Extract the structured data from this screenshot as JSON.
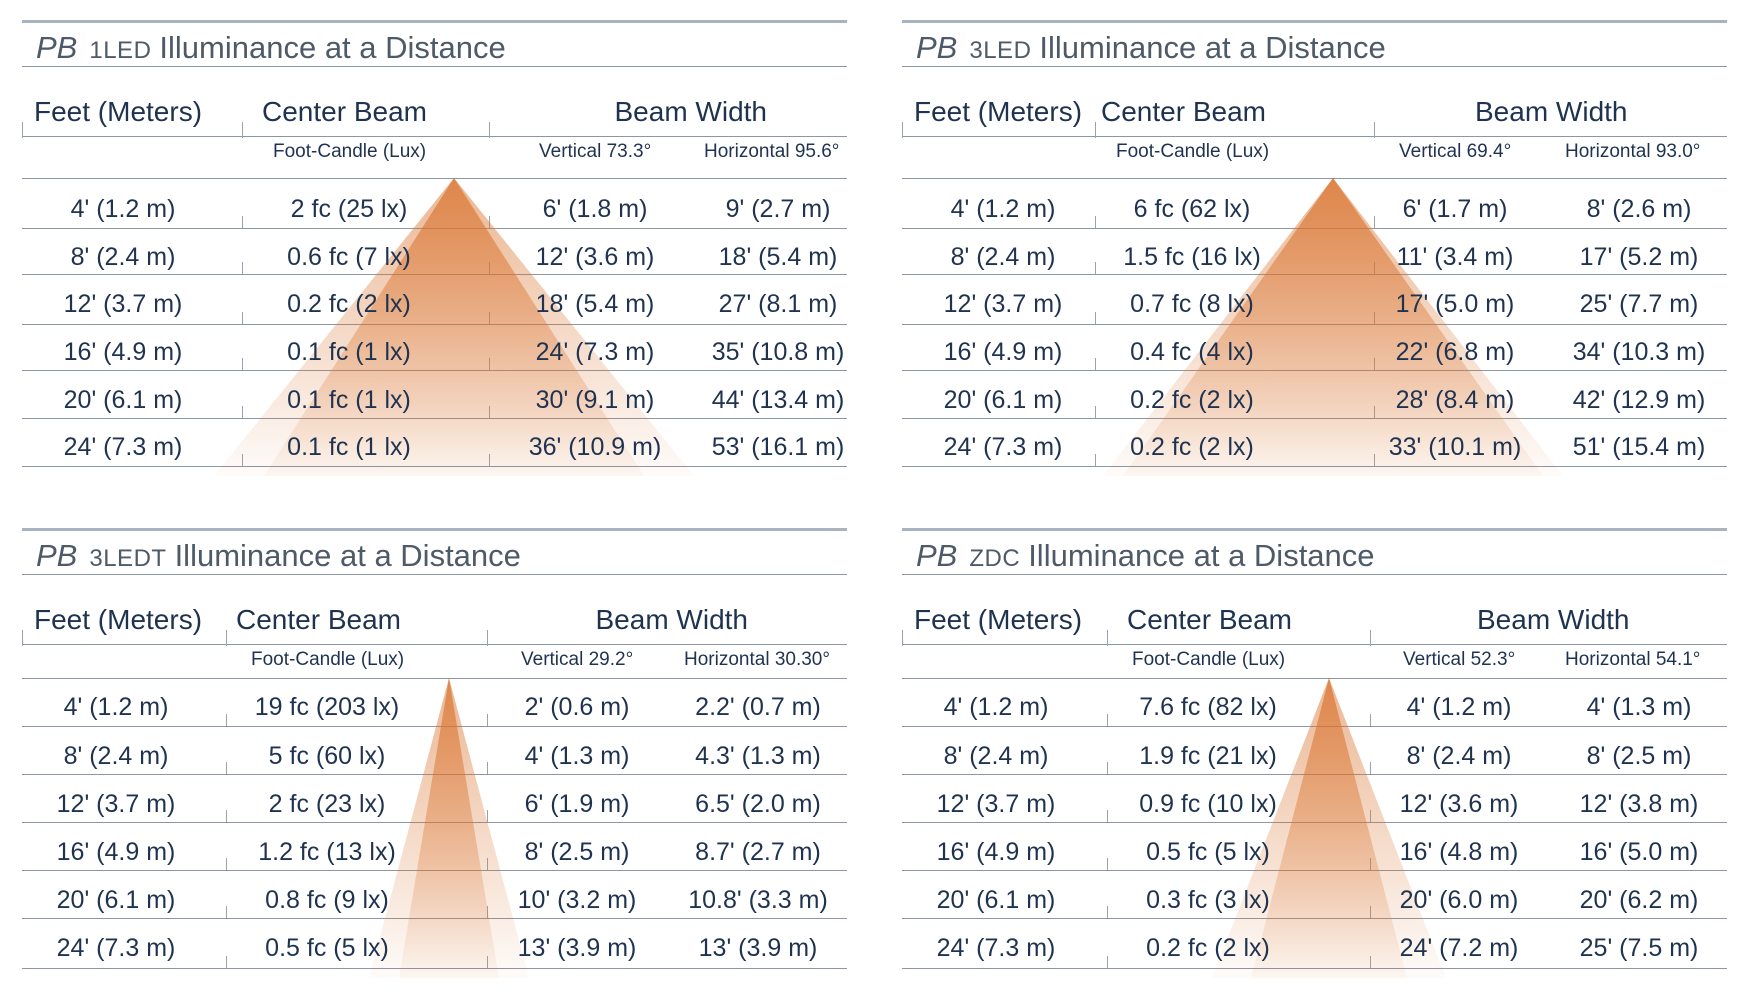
{
  "colors": {
    "beam": "#d9732e",
    "rule": "#8d96a3",
    "text": "#1f3350",
    "title": "#4e5a68"
  },
  "panels": [
    {
      "prefix": "PB",
      "model": "1LED",
      "title": "Illuminance at a Distance",
      "header": {
        "feet": "Feet (Meters)",
        "center": "Center Beam",
        "width": "Beam Width"
      },
      "subheader": {
        "center": "Foot-Candle (Lux)",
        "vertical": "Vertical 73.3°",
        "horizontal": "Horizontal 95.6°"
      },
      "rows": [
        [
          "4' (1.2 m)",
          "2 fc (25 lx)",
          "6' (1.8 m)",
          "9' (2.7 m)"
        ],
        [
          "8' (2.4 m)",
          "0.6 fc (7 lx)",
          "12' (3.6 m)",
          "18' (5.4 m)"
        ],
        [
          "12' (3.7 m)",
          "0.2 fc (2 lx)",
          "18' (5.4 m)",
          "27' (8.1 m)"
        ],
        [
          "16' (4.9 m)",
          "0.1 fc (1 lx)",
          "24' (7.3 m)",
          "35' (10.8 m)"
        ],
        [
          "20' (6.1 m)",
          "0.1 fc (1 lx)",
          "30' (9.1 m)",
          "44' (13.4 m)"
        ],
        [
          "24' (7.3 m)",
          "0.1 fc (1 lx)",
          "36' (10.9 m)",
          "53' (16.1 m)"
        ]
      ]
    },
    {
      "prefix": "PB",
      "model": "3LED",
      "title": "Illuminance at a Distance",
      "header": {
        "feet": "Feet (Meters)",
        "center": "Center Beam",
        "width": "Beam Width"
      },
      "subheader": {
        "center": "Foot-Candle (Lux)",
        "vertical": "Vertical 69.4°",
        "horizontal": "Horizontal 93.0°"
      },
      "rows": [
        [
          "4' (1.2 m)",
          "6 fc (62 lx)",
          "6' (1.7 m)",
          "8' (2.6 m)"
        ],
        [
          "8' (2.4 m)",
          "1.5 fc (16 lx)",
          "11' (3.4 m)",
          "17' (5.2 m)"
        ],
        [
          "12' (3.7 m)",
          "0.7 fc (8 lx)",
          "17' (5.0 m)",
          "25' (7.7 m)"
        ],
        [
          "16' (4.9 m)",
          "0.4 fc (4 lx)",
          "22' (6.8 m)",
          "34' (10.3 m)"
        ],
        [
          "20' (6.1 m)",
          "0.2 fc (2 lx)",
          "28' (8.4 m)",
          "42' (12.9 m)"
        ],
        [
          "24' (7.3 m)",
          "0.2 fc (2 lx)",
          "33' (10.1 m)",
          "51' (15.4 m)"
        ]
      ]
    },
    {
      "prefix": "PB",
      "model": "3LEDT",
      "title": "Illuminance at a Distance",
      "header": {
        "feet": "Feet (Meters)",
        "center": "Center Beam",
        "width": "Beam Width"
      },
      "subheader": {
        "center": "Foot-Candle (Lux)",
        "vertical": "Vertical 29.2°",
        "horizontal": "Horizontal 30.30°"
      },
      "rows": [
        [
          "4' (1.2 m)",
          "19 fc (203 lx)",
          "2' (0.6 m)",
          "2.2' (0.7 m)"
        ],
        [
          "8' (2.4 m)",
          "5 fc (60 lx)",
          "4' (1.3 m)",
          "4.3' (1.3 m)"
        ],
        [
          "12' (3.7 m)",
          "2 fc (23 lx)",
          "6' (1.9 m)",
          "6.5' (2.0 m)"
        ],
        [
          "16' (4.9 m)",
          "1.2 fc (13 lx)",
          "8' (2.5 m)",
          "8.7' (2.7 m)"
        ],
        [
          "20' (6.1 m)",
          "0.8 fc (9 lx)",
          "10' (3.2 m)",
          "10.8' (3.3 m)"
        ],
        [
          "24' (7.3 m)",
          "0.5 fc (5 lx)",
          "13' (3.9 m)",
          "13' (3.9 m)"
        ]
      ]
    },
    {
      "prefix": "PB",
      "model": "ZDC",
      "title": "Illuminance at a Distance",
      "header": {
        "feet": "Feet (Meters)",
        "center": "Center Beam",
        "width": "Beam Width"
      },
      "subheader": {
        "center": "Foot-Candle (Lux)",
        "vertical": "Vertical 52.3°",
        "horizontal": "Horizontal 54.1°"
      },
      "rows": [
        [
          "4' (1.2 m)",
          "7.6 fc (82 lx)",
          "4' (1.2 m)",
          "4' (1.3 m)"
        ],
        [
          "8' (2.4 m)",
          "1.9 fc (21 lx)",
          "8' (2.4 m)",
          "8' (2.5 m)"
        ],
        [
          "12' (3.7 m)",
          "0.9 fc (10 lx)",
          "12' (3.6 m)",
          "12' (3.8 m)"
        ],
        [
          "16' (4.9 m)",
          "0.5 fc (5 lx)",
          "16' (4.8 m)",
          "16' (5.0 m)"
        ],
        [
          "20' (6.1 m)",
          "0.3 fc (3 lx)",
          "20' (6.0 m)",
          "20' (6.2 m)"
        ],
        [
          "24' (7.3 m)",
          "0.2 fc (2 lx)",
          "24' (7.2 m)",
          "25' (7.5 m)"
        ]
      ]
    }
  ]
}
